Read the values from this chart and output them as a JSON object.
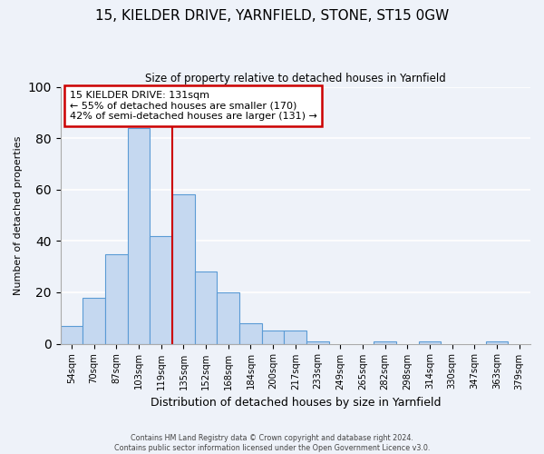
{
  "title": "15, KIELDER DRIVE, YARNFIELD, STONE, ST15 0GW",
  "subtitle": "Size of property relative to detached houses in Yarnfield",
  "xlabel": "Distribution of detached houses by size in Yarnfield",
  "ylabel": "Number of detached properties",
  "bar_labels": [
    "54sqm",
    "70sqm",
    "87sqm",
    "103sqm",
    "119sqm",
    "135sqm",
    "152sqm",
    "168sqm",
    "184sqm",
    "200sqm",
    "217sqm",
    "233sqm",
    "249sqm",
    "265sqm",
    "282sqm",
    "298sqm",
    "314sqm",
    "330sqm",
    "347sqm",
    "363sqm",
    "379sqm"
  ],
  "bar_values": [
    7,
    18,
    35,
    84,
    42,
    58,
    28,
    20,
    8,
    5,
    5,
    1,
    0,
    0,
    1,
    0,
    1,
    0,
    0,
    1,
    0
  ],
  "bar_color": "#c5d8f0",
  "bar_edge_color": "#5b9bd5",
  "vline_x_idx": 5,
  "vline_color": "#cc0000",
  "ylim": [
    0,
    100
  ],
  "annotation_line1": "15 KIELDER DRIVE: 131sqm",
  "annotation_line2": "← 55% of detached houses are smaller (170)",
  "annotation_line3": "42% of semi-detached houses are larger (131) →",
  "footer_line1": "Contains HM Land Registry data © Crown copyright and database right 2024.",
  "footer_line2": "Contains public sector information licensed under the Open Government Licence v3.0.",
  "bg_color": "#eef2f9",
  "plot_bg_color": "#eef2f9",
  "grid_color": "#ffffff"
}
